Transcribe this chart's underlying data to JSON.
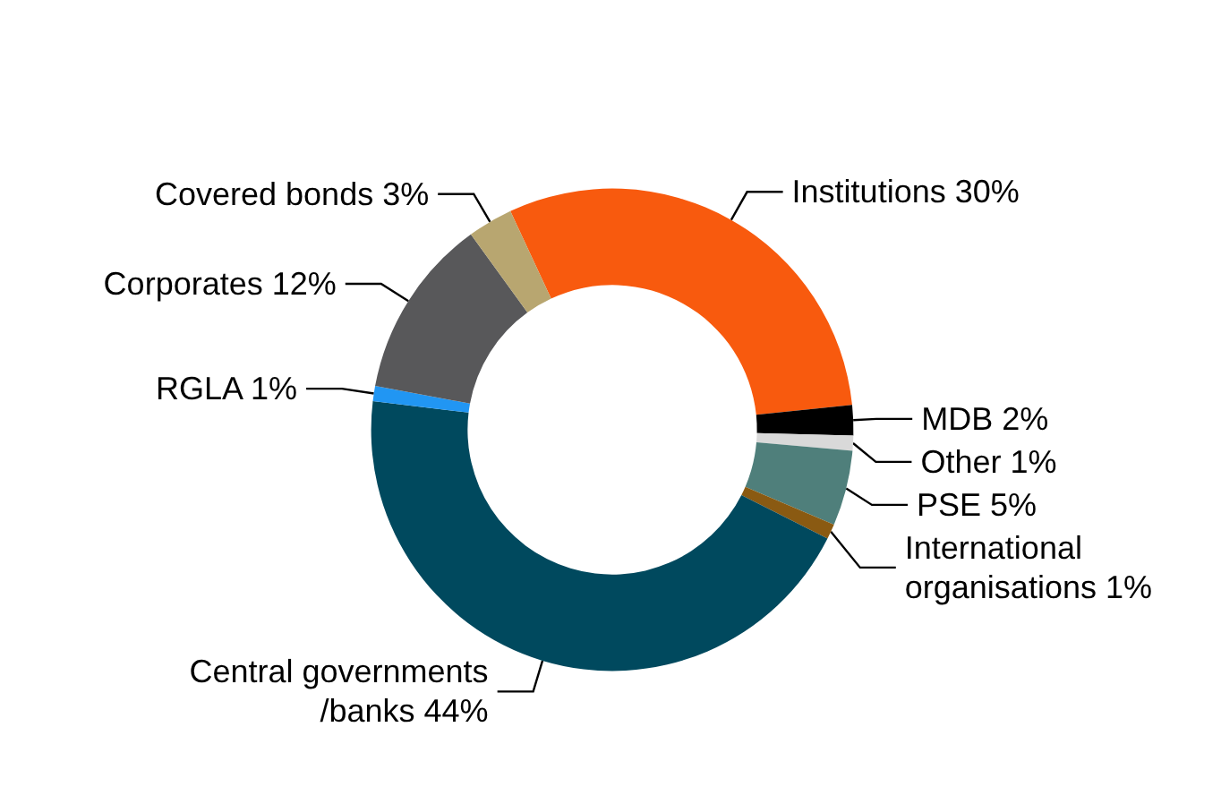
{
  "chart_data": {
    "type": "donut",
    "categories": [
      "Institutions",
      "MDB",
      "Other",
      "PSE",
      "International organisations",
      "Central governments/banks",
      "RGLA",
      "Corporates",
      "Covered bonds"
    ],
    "values": [
      30,
      2,
      1,
      5,
      1,
      44,
      1,
      12,
      3
    ],
    "colors": [
      "#f85a0e",
      "#000000",
      "#d9d9d9",
      "#4f7f7b",
      "#8a5a12",
      "#00495e",
      "#2196f3",
      "#58585a",
      "#b8a670"
    ],
    "value_labels": [
      "30%",
      "2%",
      "1%",
      "5%",
      "1%",
      "44%",
      "1%",
      "12%",
      "3%"
    ],
    "legend": false
  }
}
